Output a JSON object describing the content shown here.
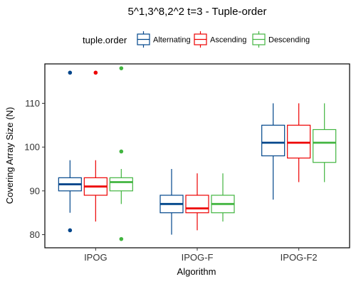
{
  "chart_data": {
    "type": "boxplot",
    "title": "5^1,3^8,2^2 t=3 - Tuple-order",
    "xlabel": "Algorithm",
    "ylabel": "Covering Array Size (N)",
    "ylim": [
      77,
      119
    ],
    "yticks": [
      80,
      90,
      100,
      110
    ],
    "categories": [
      "IPOG",
      "IPOG-F",
      "IPOG-F2"
    ],
    "legend": {
      "title": "tuple.order",
      "position": "top"
    },
    "grid": false,
    "series": [
      {
        "name": "Alternating",
        "color": "#00468B",
        "boxes": [
          {
            "min": 85,
            "q1": 90,
            "median": 91.5,
            "q3": 93,
            "max": 97,
            "outliers": [
              117,
              81
            ]
          },
          {
            "min": 80,
            "q1": 85,
            "median": 87,
            "q3": 89,
            "max": 95,
            "outliers": []
          },
          {
            "min": 88,
            "q1": 98,
            "median": 101,
            "q3": 105,
            "max": 110,
            "outliers": []
          }
        ]
      },
      {
        "name": "Ascending",
        "color": "#ED0000",
        "boxes": [
          {
            "min": 83,
            "q1": 89,
            "median": 91,
            "q3": 93,
            "max": 97,
            "outliers": [
              117
            ]
          },
          {
            "min": 81,
            "q1": 85,
            "median": 86,
            "q3": 89,
            "max": 94,
            "outliers": []
          },
          {
            "min": 92,
            "q1": 97.5,
            "median": 101,
            "q3": 105,
            "max": 110,
            "outliers": []
          }
        ]
      },
      {
        "name": "Descending",
        "color": "#42B540",
        "boxes": [
          {
            "min": 87,
            "q1": 90,
            "median": 92,
            "q3": 93,
            "max": 95,
            "outliers": [
              118,
              99,
              79
            ]
          },
          {
            "min": 83,
            "q1": 85,
            "median": 87,
            "q3": 89,
            "max": 94,
            "outliers": []
          },
          {
            "min": 92,
            "q1": 96.5,
            "median": 101,
            "q3": 104,
            "max": 110,
            "outliers": []
          }
        ]
      }
    ]
  }
}
